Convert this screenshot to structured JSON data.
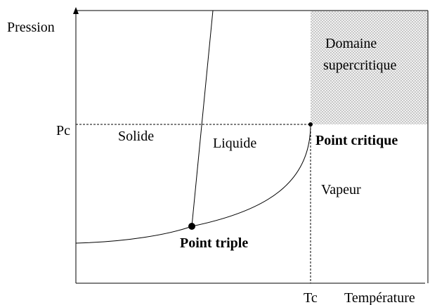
{
  "axes": {
    "y_label": "Pression",
    "x_label": "Température",
    "y_mark": "Pc",
    "x_mark": "Tc"
  },
  "regions": {
    "solid": "Solide",
    "liquid": "Liquide",
    "vapor": "Vapeur",
    "supercritical": [
      "Domaine",
      "supercritique"
    ]
  },
  "points": {
    "critical": "Point critique",
    "triple": "Point triple"
  }
}
